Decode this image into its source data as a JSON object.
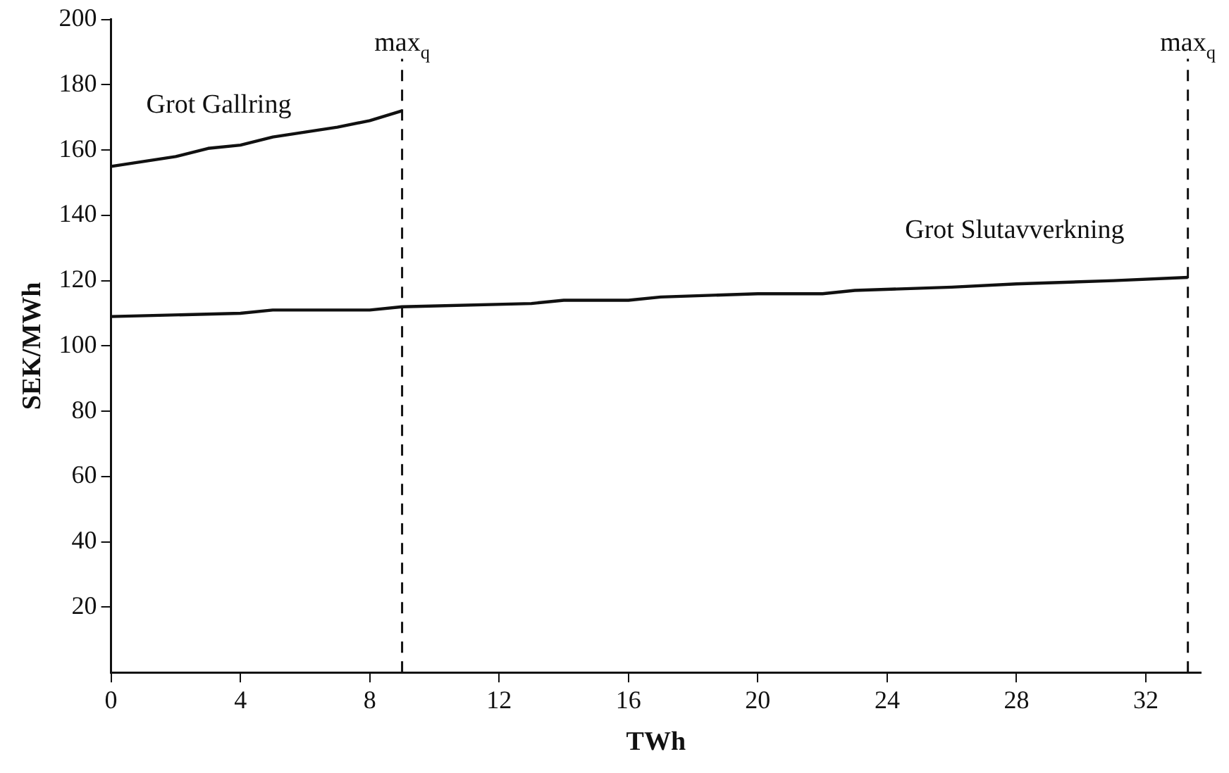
{
  "chart_data": {
    "type": "line",
    "xlabel": "TWh",
    "ylabel": "SEK/MWh",
    "series": [
      {
        "name": "Grot Gallring",
        "color": "#111111",
        "x": [
          0,
          1,
          2,
          3,
          4,
          5,
          6,
          7,
          8,
          9
        ],
        "values": [
          155,
          156.5,
          158,
          160.5,
          161.5,
          164,
          165.5,
          167,
          169,
          172
        ]
      },
      {
        "name": "Grot Slutavverkning",
        "color": "#111111",
        "x": [
          0,
          4,
          5,
          8,
          9,
          13,
          14,
          16,
          17,
          20,
          22,
          23,
          26,
          28,
          31,
          33.3
        ],
        "values": [
          109,
          110,
          111,
          111,
          112,
          113,
          114,
          114,
          115,
          116,
          116,
          117,
          118,
          119,
          120,
          121
        ]
      }
    ],
    "xlim": [
      0,
      33.7
    ],
    "xticks": [
      0,
      4,
      8,
      12,
      16,
      20,
      24,
      28,
      32
    ],
    "ylim": [
      0,
      200
    ],
    "yticks": [
      20,
      40,
      60,
      80,
      100,
      120,
      140,
      160,
      180,
      200
    ],
    "ref_lines": [
      {
        "axis": "x",
        "value": 9,
        "label": "max$_{q}$",
        "line_style": "dashed",
        "color": "#111111"
      },
      {
        "axis": "x",
        "value": 33.3,
        "label": "max$_{q}$",
        "line_style": "dashed",
        "color": "#111111"
      }
    ],
    "grid": false,
    "legend": false,
    "marker": "none",
    "line_style": "solid"
  }
}
